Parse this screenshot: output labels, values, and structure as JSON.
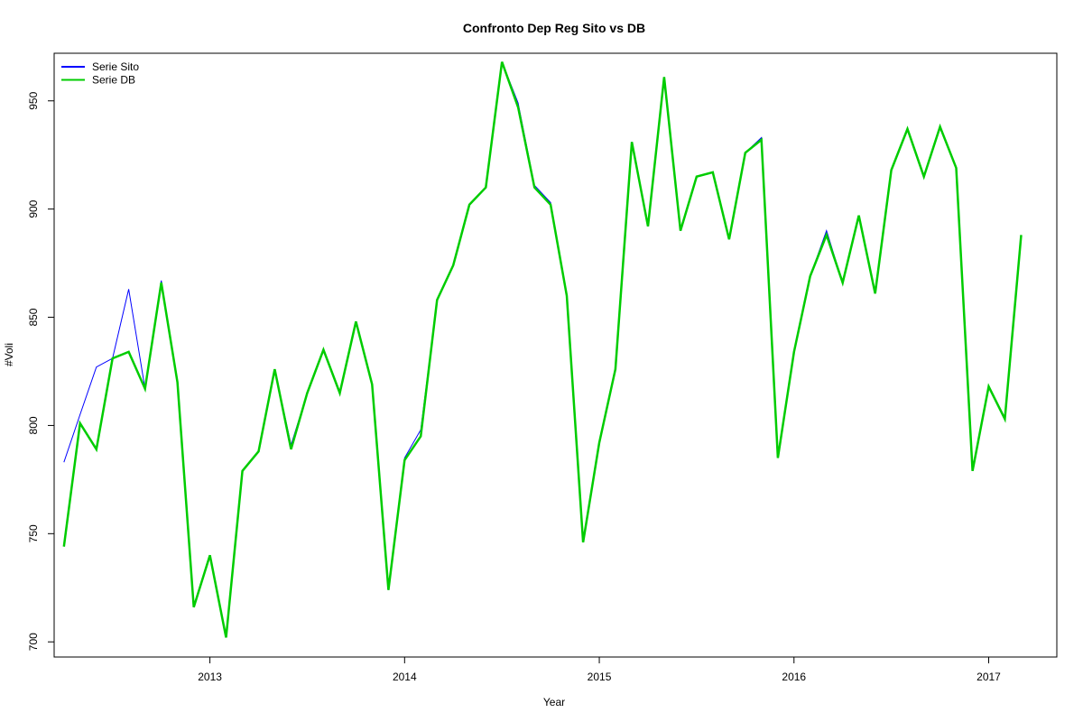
{
  "chart_data": {
    "type": "line",
    "title": "Confronto Dep Reg Sito vs DB",
    "xlabel": "Year",
    "ylabel": "#Voli",
    "xlim": [
      2012.2,
      2017.35
    ],
    "ylim": [
      693,
      972
    ],
    "x_ticks": [
      2013,
      2014,
      2015,
      2016,
      2017
    ],
    "x_tick_labels": [
      "2013",
      "2014",
      "2015",
      "2016",
      "2017"
    ],
    "y_ticks": [
      700,
      750,
      800,
      850,
      900,
      950
    ],
    "y_tick_labels": [
      "700",
      "750",
      "800",
      "850",
      "900",
      "950"
    ],
    "legend_position": "top-left",
    "grid": false,
    "x": [
      2012.25,
      2012.333,
      2012.417,
      2012.5,
      2012.583,
      2012.667,
      2012.75,
      2012.833,
      2012.917,
      2013.0,
      2013.083,
      2013.167,
      2013.25,
      2013.333,
      2013.417,
      2013.5,
      2013.583,
      2013.667,
      2013.75,
      2013.833,
      2013.917,
      2014.0,
      2014.083,
      2014.167,
      2014.25,
      2014.333,
      2014.417,
      2014.5,
      2014.583,
      2014.667,
      2014.75,
      2014.833,
      2014.917,
      2015.0,
      2015.083,
      2015.167,
      2015.25,
      2015.333,
      2015.417,
      2015.5,
      2015.583,
      2015.667,
      2015.75,
      2015.833,
      2015.917,
      2016.0,
      2016.083,
      2016.167,
      2016.25,
      2016.333,
      2016.417,
      2016.5,
      2016.583,
      2016.667,
      2016.75,
      2016.833,
      2016.917,
      2017.0,
      2017.083,
      2017.167
    ],
    "series": [
      {
        "name": "Serie Sito",
        "color": "#0000ff",
        "line_width": 1,
        "values": [
          783,
          805,
          827,
          831,
          863,
          817,
          867,
          820,
          716,
          740,
          702,
          779,
          788,
          826,
          791,
          815,
          835,
          815,
          848,
          819,
          724,
          785,
          798,
          858,
          874,
          902,
          910,
          968,
          949,
          911,
          903,
          860,
          746,
          792,
          826,
          931,
          892,
          961,
          890,
          915,
          917,
          886,
          926,
          933,
          785,
          834,
          869,
          890,
          866,
          897,
          861,
          918,
          937,
          915,
          938,
          919,
          779,
          818,
          803,
          888
        ]
      },
      {
        "name": "Serie DB",
        "color": "#00cc00",
        "line_width": 2.5,
        "values": [
          744,
          801,
          789,
          831,
          834,
          817,
          866,
          820,
          716,
          740,
          702,
          779,
          788,
          826,
          789,
          815,
          835,
          815,
          848,
          819,
          724,
          784,
          795,
          858,
          874,
          902,
          910,
          968,
          947,
          910,
          902,
          860,
          746,
          792,
          826,
          931,
          892,
          961,
          890,
          915,
          917,
          886,
          926,
          932,
          785,
          834,
          869,
          888,
          866,
          897,
          861,
          918,
          937,
          915,
          938,
          919,
          779,
          818,
          803,
          888
        ]
      }
    ]
  }
}
